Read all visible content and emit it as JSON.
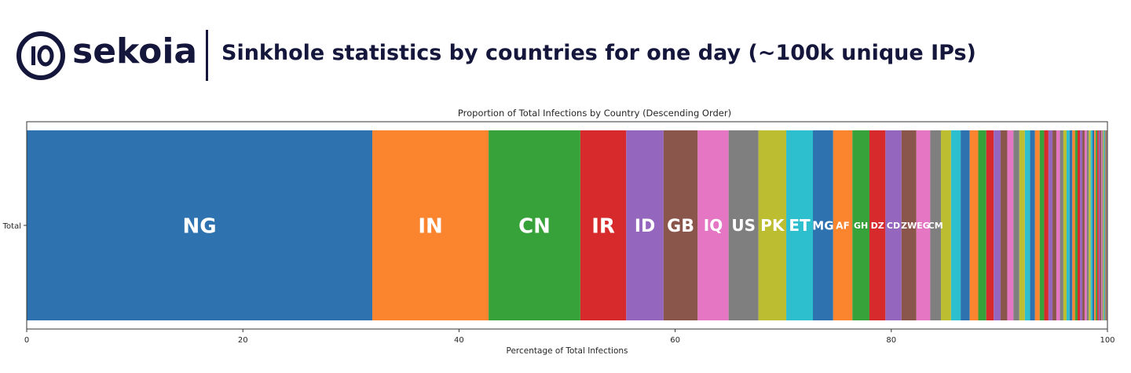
{
  "brand": {
    "name": "sekoia",
    "divider": true,
    "headline": "Sinkhole statistics by countries for one day (~100k unique IPs)",
    "color": "#15163c"
  },
  "chart_data": {
    "type": "bar",
    "orientation": "horizontal-stacked",
    "title": "Proportion of Total Infections by Country (Descending Order)",
    "xlabel": "Percentage of Total Infections",
    "ylabel": "",
    "category": "Total",
    "xlim": [
      0,
      100
    ],
    "xticks": [
      0,
      20,
      40,
      60,
      80,
      100
    ],
    "grid": false,
    "segments": [
      {
        "label": "NG",
        "value": 32.4,
        "color": "#2e73b0"
      },
      {
        "label": "IN",
        "value": 10.9,
        "color": "#fa852e"
      },
      {
        "label": "CN",
        "value": 8.6,
        "color": "#37a23a"
      },
      {
        "label": "IR",
        "value": 4.3,
        "color": "#d62a2c"
      },
      {
        "label": "ID",
        "value": 3.5,
        "color": "#9566bd"
      },
      {
        "label": "GB",
        "value": 3.2,
        "color": "#8a564c"
      },
      {
        "label": "IQ",
        "value": 2.9,
        "color": "#e476c4"
      },
      {
        "label": "US",
        "value": 2.8,
        "color": "#7f7f7f"
      },
      {
        "label": "PK",
        "value": 2.6,
        "color": "#bdbd32"
      },
      {
        "label": "ET",
        "value": 2.5,
        "color": "#2ebfcf"
      },
      {
        "label": "MG",
        "value": 1.9,
        "color": "#2e73b0"
      },
      {
        "label": "AF",
        "value": 1.8,
        "color": "#fa852e"
      },
      {
        "label": "GH",
        "value": 1.6,
        "color": "#37a23a"
      },
      {
        "label": "DZ",
        "value": 1.5,
        "color": "#d62a2c"
      },
      {
        "label": "CD",
        "value": 1.5,
        "color": "#9566bd"
      },
      {
        "label": "ZW",
        "value": 1.4,
        "color": "#8a564c"
      },
      {
        "label": "EG",
        "value": 1.3,
        "color": "#e476c4"
      },
      {
        "label": "CM",
        "value": 1.0,
        "color": "#7f7f7f"
      },
      {
        "label": "",
        "value": 0.95,
        "color": "#bdbd32"
      },
      {
        "label": "",
        "value": 0.9,
        "color": "#2ebfcf"
      },
      {
        "label": "",
        "value": 0.85,
        "color": "#2e73b0"
      },
      {
        "label": "",
        "value": 0.8,
        "color": "#fa852e"
      },
      {
        "label": "",
        "value": 0.75,
        "color": "#37a23a"
      },
      {
        "label": "",
        "value": 0.7,
        "color": "#d62a2c"
      },
      {
        "label": "",
        "value": 0.65,
        "color": "#9566bd"
      },
      {
        "label": "",
        "value": 0.62,
        "color": "#8a564c"
      },
      {
        "label": "",
        "value": 0.58,
        "color": "#e476c4"
      },
      {
        "label": "",
        "value": 0.55,
        "color": "#7f7f7f"
      },
      {
        "label": "",
        "value": 0.52,
        "color": "#bdbd32"
      },
      {
        "label": "",
        "value": 0.49,
        "color": "#2ebfcf"
      },
      {
        "label": "",
        "value": 0.46,
        "color": "#2e73b0"
      },
      {
        "label": "",
        "value": 0.44,
        "color": "#fa852e"
      },
      {
        "label": "",
        "value": 0.42,
        "color": "#37a23a"
      },
      {
        "label": "",
        "value": 0.4,
        "color": "#d62a2c"
      },
      {
        "label": "",
        "value": 0.38,
        "color": "#9566bd"
      },
      {
        "label": "",
        "value": 0.36,
        "color": "#8a564c"
      },
      {
        "label": "",
        "value": 0.34,
        "color": "#e476c4"
      },
      {
        "label": "",
        "value": 0.32,
        "color": "#7f7f7f"
      },
      {
        "label": "",
        "value": 0.3,
        "color": "#bdbd32"
      },
      {
        "label": "",
        "value": 0.28,
        "color": "#2ebfcf"
      },
      {
        "label": "",
        "value": 0.26,
        "color": "#2e73b0"
      },
      {
        "label": "",
        "value": 0.25,
        "color": "#fa852e"
      },
      {
        "label": "",
        "value": 0.24,
        "color": "#37a23a"
      },
      {
        "label": "",
        "value": 0.23,
        "color": "#d62a2c"
      },
      {
        "label": "",
        "value": 0.22,
        "color": "#9566bd"
      },
      {
        "label": "",
        "value": 0.21,
        "color": "#8a564c"
      },
      {
        "label": "",
        "value": 0.2,
        "color": "#e476c4"
      },
      {
        "label": "",
        "value": 0.19,
        "color": "#7f7f7f"
      },
      {
        "label": "",
        "value": 0.18,
        "color": "#bdbd32"
      },
      {
        "label": "",
        "value": 0.17,
        "color": "#2ebfcf"
      },
      {
        "label": "",
        "value": 0.16,
        "color": "#2e73b0"
      },
      {
        "label": "",
        "value": 0.15,
        "color": "#fa852e"
      },
      {
        "label": "",
        "value": 0.14,
        "color": "#37a23a"
      },
      {
        "label": "",
        "value": 0.13,
        "color": "#d62a2c"
      },
      {
        "label": "",
        "value": 0.12,
        "color": "#9566bd"
      },
      {
        "label": "",
        "value": 0.11,
        "color": "#8a564c"
      },
      {
        "label": "",
        "value": 0.1,
        "color": "#e476c4"
      },
      {
        "label": "",
        "value": 0.09,
        "color": "#7f7f7f"
      },
      {
        "label": "",
        "value": 0.08,
        "color": "#bdbd32"
      },
      {
        "label": "",
        "value": 0.07,
        "color": "#2ebfcf"
      },
      {
        "label": "",
        "value": 0.06,
        "color": "#2e73b0"
      },
      {
        "label": "",
        "value": 0.05,
        "color": "#fa852e"
      },
      {
        "label": "",
        "value": 0.04,
        "color": "#37a23a"
      },
      {
        "label": "",
        "value": 0.04,
        "color": "#d62a2c"
      },
      {
        "label": "",
        "value": 0.03,
        "color": "#9566bd"
      },
      {
        "label": "",
        "value": 0.03,
        "color": "#8a564c"
      }
    ]
  }
}
